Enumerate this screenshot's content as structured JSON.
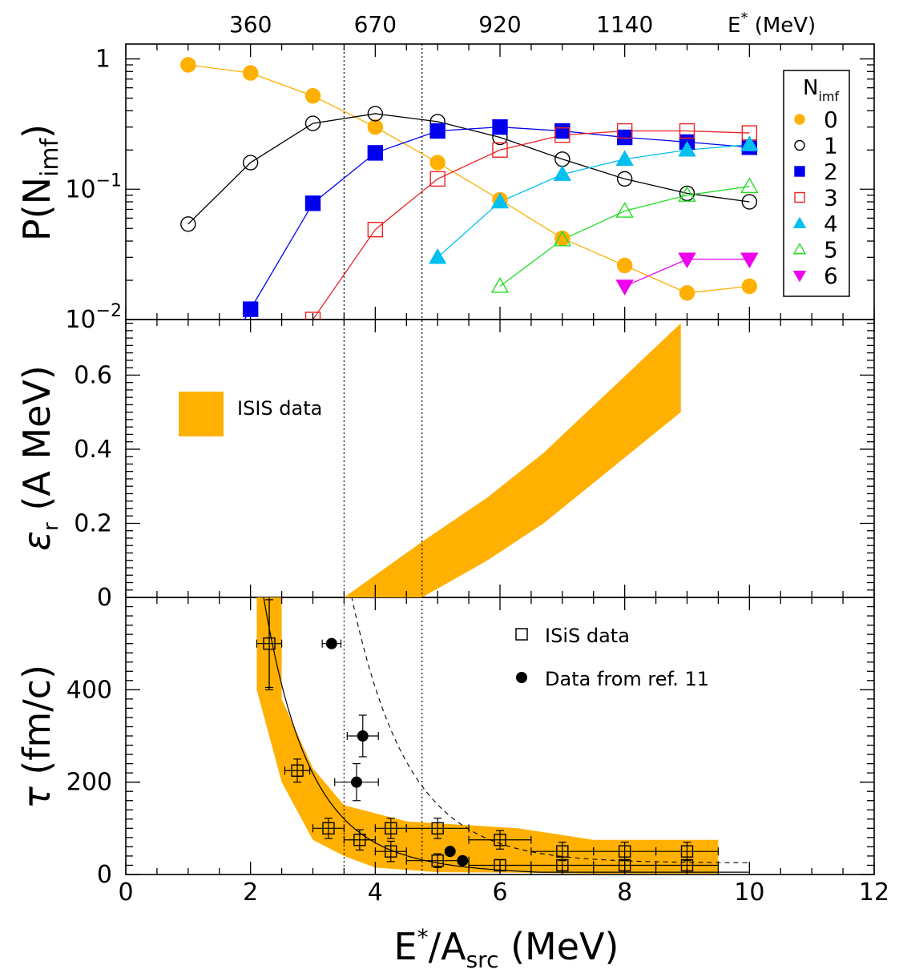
{
  "chart_data": [
    {
      "type": "line",
      "panel": "top",
      "ylabel": "P(N",
      "ylabel_sub": "imf",
      "ylabel_close": ")",
      "log_y": true,
      "ylim": [
        0.01,
        1.3
      ],
      "xlim": [
        0,
        12
      ],
      "yticks": [
        {
          "v": 1,
          "label": "1"
        },
        {
          "v": 0.1,
          "label": "10",
          "sup": "−1"
        },
        {
          "v": 0.01,
          "label": "10",
          "sup": "−2"
        }
      ],
      "top_axis": {
        "labels": [
          "360",
          "670",
          "920",
          "1140"
        ],
        "positions": [
          2,
          4,
          6,
          8
        ],
        "title": "E",
        "title_sup": "*",
        "title_unit": "(MeV)"
      },
      "legend": {
        "title": "N",
        "title_sub": "imf",
        "placement": "top-right"
      },
      "series": [
        {
          "name": "0",
          "marker": "circle-filled",
          "color": "#FFB000",
          "x": [
            1,
            2,
            3,
            4,
            5,
            6,
            7,
            8,
            9,
            10
          ],
          "y": [
            0.9,
            0.78,
            0.52,
            0.3,
            0.16,
            0.083,
            0.042,
            0.026,
            0.016,
            0.018
          ]
        },
        {
          "name": "1",
          "marker": "circle-open",
          "color": "#000000",
          "x": [
            1,
            2,
            3,
            4,
            5,
            6,
            7,
            8,
            9,
            10
          ],
          "y": [
            0.054,
            0.16,
            0.32,
            0.38,
            0.33,
            0.25,
            0.17,
            0.12,
            0.093,
            0.08
          ]
        },
        {
          "name": "2",
          "marker": "square-filled",
          "color": "#0000EE",
          "x": [
            2,
            3,
            4,
            5,
            6,
            7,
            8,
            9,
            10
          ],
          "y": [
            0.012,
            0.078,
            0.19,
            0.28,
            0.3,
            0.28,
            0.25,
            0.23,
            0.21
          ]
        },
        {
          "name": "3",
          "marker": "square-open",
          "color": "#EE2222",
          "x": [
            3,
            4,
            5,
            6,
            7,
            8,
            9,
            10
          ],
          "y": [
            0.01,
            0.049,
            0.12,
            0.2,
            0.26,
            0.28,
            0.28,
            0.27
          ]
        },
        {
          "name": "4",
          "marker": "triangle-filled",
          "color": "#00C0F0",
          "x": [
            5,
            6,
            7,
            8,
            9,
            10
          ],
          "y": [
            0.03,
            0.08,
            0.13,
            0.17,
            0.2,
            0.22
          ]
        },
        {
          "name": "5",
          "marker": "triangle-open",
          "color": "#22DD22",
          "x": [
            6,
            7,
            8,
            9,
            10
          ],
          "y": [
            0.018,
            0.041,
            0.068,
            0.09,
            0.105
          ]
        },
        {
          "name": "6",
          "marker": "triangle-down-filled",
          "color": "#EE00EE",
          "x": [
            8,
            9,
            10
          ],
          "y": [
            0.018,
            0.029,
            0.029
          ]
        }
      ]
    },
    {
      "type": "area",
      "panel": "middle",
      "ylabel": "ε",
      "ylabel_sub": "r",
      "ylabel_unit": "(A MeV)",
      "ylim": [
        0,
        0.75
      ],
      "yticks": [
        0,
        0.2,
        0.4,
        0.6
      ],
      "fill_color": "#FFB000",
      "legend": {
        "label": "ISIS data",
        "placement": "top-left"
      },
      "band": {
        "upper": [
          [
            3.5,
            0
          ],
          [
            4.75,
            0.15
          ],
          [
            5.8,
            0.27
          ],
          [
            6.7,
            0.39
          ],
          [
            8.9,
            0.74
          ]
        ],
        "lower": [
          [
            4.75,
            0
          ],
          [
            5.8,
            0.1
          ],
          [
            6.7,
            0.2
          ],
          [
            8.9,
            0.5
          ]
        ]
      }
    },
    {
      "type": "scatter",
      "panel": "bottom",
      "ylabel": "τ",
      "ylabel_unit": "(fm/c)",
      "xlabel": "E",
      "xlabel_sup": "*",
      "xlabel_rest": "/A",
      "xlabel_sub": "src",
      "xlabel_unit": "(MeV)",
      "xlim": [
        0,
        12
      ],
      "ylim": [
        0,
        600
      ],
      "xticks": [
        0,
        2,
        4,
        6,
        8,
        10,
        12
      ],
      "yticks": [
        0,
        200,
        400
      ],
      "legend": {
        "placement": "top-right",
        "entries": [
          "ISiS data",
          "Data from ref. 11"
        ]
      },
      "band_color": "#FFB000",
      "band": {
        "upper": [
          [
            2.1,
            600
          ],
          [
            2.5,
            600
          ],
          [
            2.5,
            380
          ],
          [
            3.0,
            230
          ],
          [
            3.5,
            150
          ],
          [
            4.5,
            115
          ],
          [
            6.3,
            100
          ],
          [
            7.5,
            75
          ],
          [
            9.5,
            75
          ]
        ],
        "lower": [
          [
            9.5,
            2
          ],
          [
            7.5,
            2
          ],
          [
            6.3,
            4
          ],
          [
            5.0,
            5
          ],
          [
            4.0,
            15
          ],
          [
            3.5,
            40
          ],
          [
            3.0,
            75
          ],
          [
            2.5,
            200
          ],
          [
            2.1,
            400
          ]
        ]
      },
      "isis_points": [
        {
          "x": 2.3,
          "y": 500,
          "xerr": 0.2,
          "yerr": 95
        },
        {
          "x": 2.75,
          "y": 225,
          "xerr": 0.2,
          "yerr": 25
        },
        {
          "x": 3.25,
          "y": 100,
          "xerr": 0.25,
          "yerr": 22
        },
        {
          "x": 3.75,
          "y": 75,
          "xerr": 0.25,
          "yerr": 22
        },
        {
          "x": 4.25,
          "y": 100,
          "xerr": 0.25,
          "yerr": 22
        },
        {
          "x": 4.25,
          "y": 50,
          "xerr": 0.25,
          "yerr": 22
        },
        {
          "x": 5.0,
          "y": 100,
          "xerr": 0.5,
          "yerr": 22
        },
        {
          "x": 5.0,
          "y": 30,
          "xerr": 0.5,
          "yerr": 15
        },
        {
          "x": 6.0,
          "y": 75,
          "xerr": 0.5,
          "yerr": 20
        },
        {
          "x": 6.0,
          "y": 20,
          "xerr": 0.5,
          "yerr": 12
        },
        {
          "x": 7.0,
          "y": 50,
          "xerr": 0.5,
          "yerr": 20
        },
        {
          "x": 7.0,
          "y": 20,
          "xerr": 0.5,
          "yerr": 12
        },
        {
          "x": 8.0,
          "y": 50,
          "xerr": 0.5,
          "yerr": 20
        },
        {
          "x": 8.0,
          "y": 20,
          "xerr": 0.5,
          "yerr": 12
        },
        {
          "x": 9.0,
          "y": 50,
          "xerr": 0.5,
          "yerr": 20
        },
        {
          "x": 9.0,
          "y": 20,
          "xerr": 0.5,
          "yerr": 12
        }
      ],
      "ref_points": [
        {
          "x": 3.3,
          "y": 500,
          "xerr": 0.15,
          "yerr": 0
        },
        {
          "x": 3.8,
          "y": 300,
          "xerr": 0.25,
          "yerr": 45
        },
        {
          "x": 3.7,
          "y": 200,
          "xerr": 0.35,
          "yerr": 40
        },
        {
          "x": 5.2,
          "y": 50,
          "xerr": 0,
          "yerr": 0
        },
        {
          "x": 5.4,
          "y": 30,
          "xerr": 0,
          "yerr": 0
        }
      ],
      "fit_solid": {
        "a": 2.1,
        "b": 1.4,
        "d": 1.0
      },
      "fit_dashed": {
        "x_from": 3.2,
        "x_to": 10,
        "ref_x": 4.0,
        "ref_y": 380,
        "falloff": 1.1
      }
    }
  ],
  "vertical_markers": [
    3.5,
    4.75
  ]
}
